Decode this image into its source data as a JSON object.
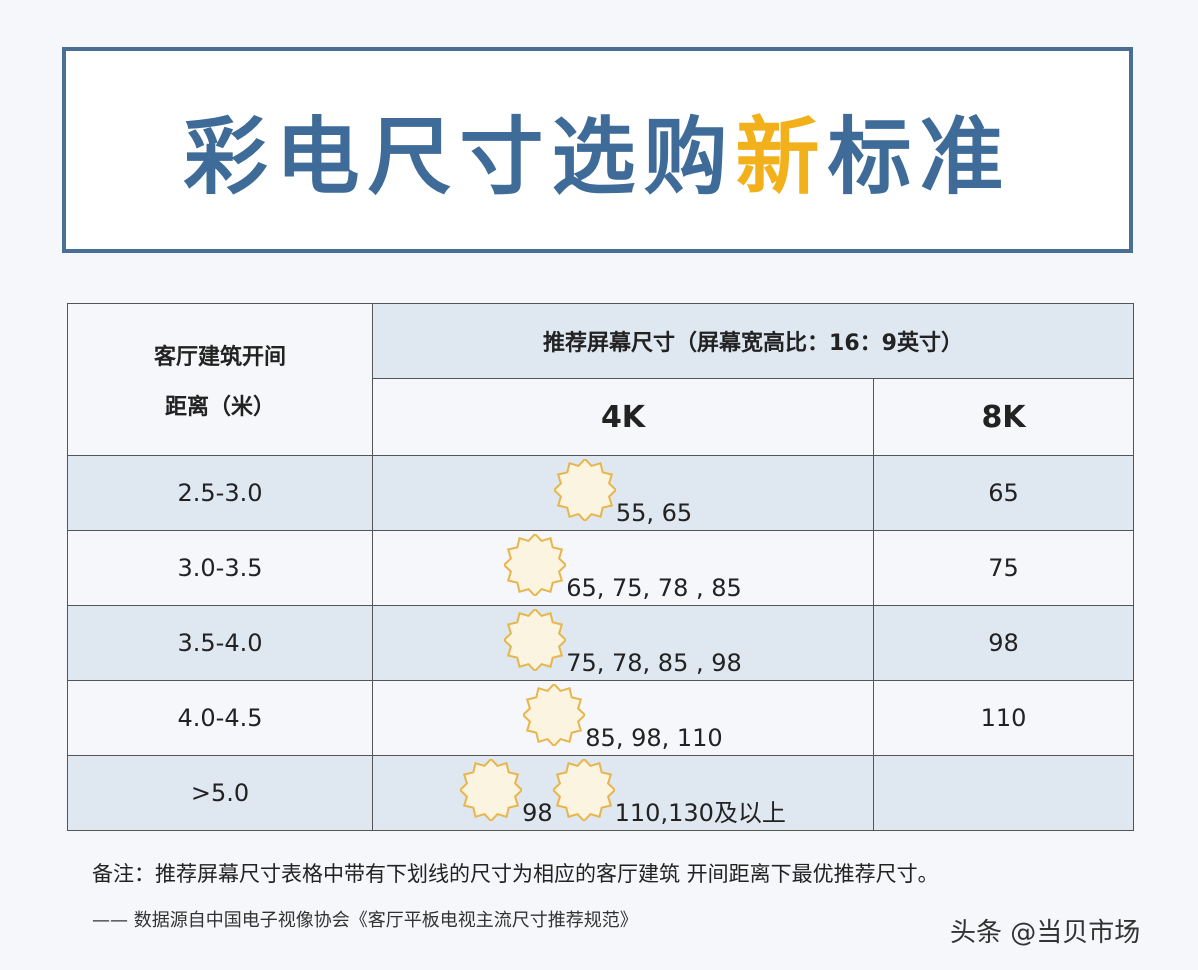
{
  "header": {
    "title_parts": [
      "彩电尺寸选购",
      "新",
      "标准"
    ]
  },
  "table": {
    "row_header": [
      "客厅建筑开间",
      "距离（米）"
    ],
    "group_header": "推荐屏幕尺寸（屏幕宽高比：16：9英寸）",
    "columns": [
      "4K",
      "8K"
    ],
    "rows": [
      {
        "distance": "2.5-3.0",
        "best": [
          "55"
        ],
        "others": ", 65",
        "k8": "65"
      },
      {
        "distance": "3.0-3.5",
        "best": [
          "65"
        ],
        "others": ", 75, 78 , 85",
        "k8": "75"
      },
      {
        "distance": "3.5-4.0",
        "best": [
          "75"
        ],
        "others": ", 78, 85 , 98",
        "k8": "98"
      },
      {
        "distance": "4.0-4.5",
        "best": [
          "85"
        ],
        "others": ", 98, 110",
        "k8": "110"
      },
      {
        "distance": ">5.0",
        "best": [
          "98",
          "110"
        ],
        "others": ",130及以上",
        "k8": null
      }
    ]
  },
  "footer": {
    "note": "备注：推荐屏幕尺寸表格中带有下划线的尺寸为相应的客厅建筑 开间距离下最优推荐尺寸。",
    "source": "—— 数据源自中国电子视像协会《客厅平板电视主流尺寸推荐规范》",
    "watermark": "头条 @当贝市场"
  }
}
